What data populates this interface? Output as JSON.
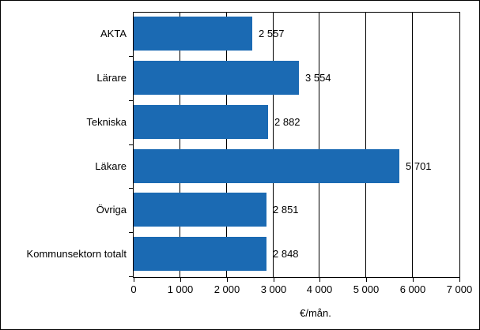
{
  "chart_data": {
    "type": "bar",
    "orientation": "horizontal",
    "title": "",
    "categories": [
      "AKTA",
      "Lärare",
      "Tekniska",
      "Läkare",
      "Övriga",
      "Kommunsektorn totalt"
    ],
    "values": [
      2557,
      3554,
      2882,
      5701,
      2851,
      2848
    ],
    "value_labels": [
      "2 557",
      "3 554",
      "2 882",
      "5 701",
      "2 851",
      "2 848"
    ],
    "xlabel": "€/mån.",
    "xlim": [
      0,
      7000
    ],
    "x_ticks": [
      0,
      1000,
      2000,
      3000,
      4000,
      5000,
      6000,
      7000
    ],
    "x_tick_labels": [
      "0",
      "1 000",
      "2 000",
      "3 000",
      "4 000",
      "5 000",
      "6 000",
      "7 000"
    ],
    "grid": true,
    "legend": "none",
    "bar_color": "#1B6AB3",
    "axis_color": "#000000",
    "background_color": "#FFFFFF"
  }
}
